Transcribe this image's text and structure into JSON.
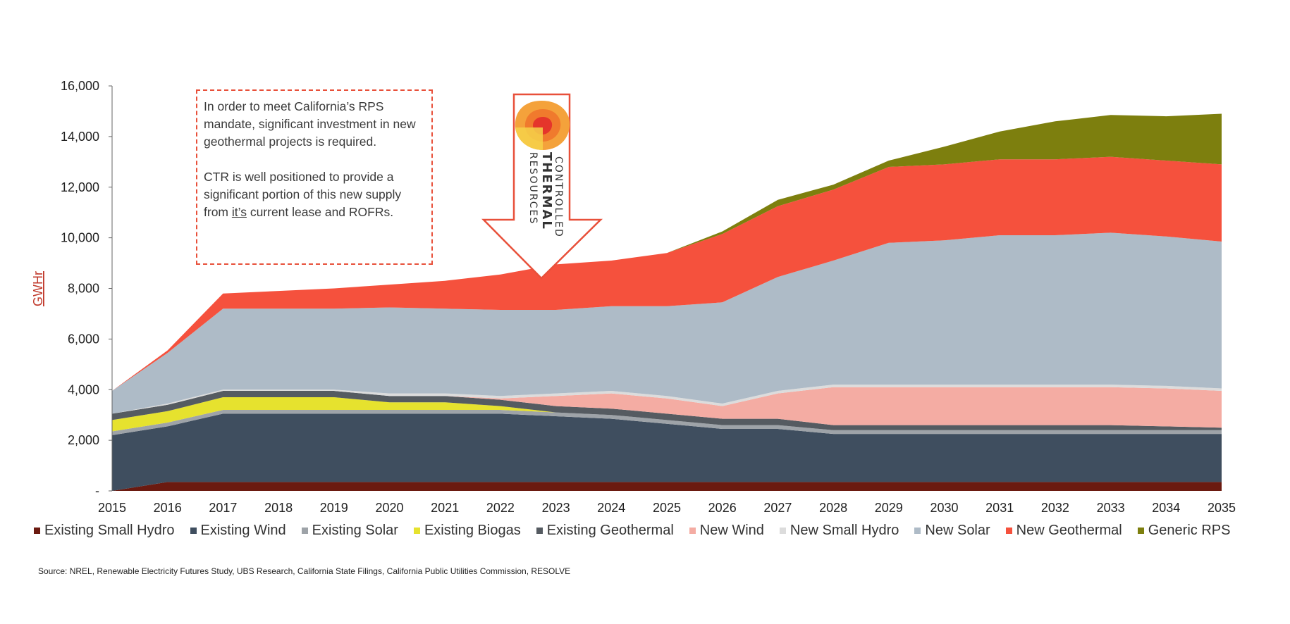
{
  "chart_data": {
    "type": "area",
    "stacked": true,
    "ylabel": "GWHr",
    "ylim": [
      0,
      16000
    ],
    "yticks": [
      "-",
      "2,000",
      "4,000",
      "6,000",
      "8,000",
      "10,000",
      "12,000",
      "14,000",
      "16,000"
    ],
    "x": [
      "2015",
      "2016",
      "2017",
      "2018",
      "2019",
      "2020",
      "2021",
      "2022",
      "2023",
      "2024",
      "2025",
      "2026",
      "2027",
      "2028",
      "2029",
      "2030",
      "2031",
      "2032",
      "2033",
      "2034",
      "2035"
    ],
    "series": [
      {
        "name": "Existing Small Hydro",
        "color": "#6b1a10",
        "values": [
          0,
          350,
          350,
          350,
          350,
          350,
          350,
          350,
          350,
          350,
          350,
          350,
          350,
          350,
          350,
          350,
          350,
          350,
          350,
          350,
          350
        ]
      },
      {
        "name": "Existing Wind",
        "color": "#3f4e5f",
        "values": [
          2200,
          2200,
          2700,
          2700,
          2700,
          2700,
          2700,
          2700,
          2600,
          2500,
          2300,
          2100,
          2100,
          1900,
          1900,
          1900,
          1900,
          1900,
          1900,
          1900,
          1900
        ]
      },
      {
        "name": "Existing Solar",
        "color": "#9ea3a8",
        "values": [
          150,
          150,
          150,
          150,
          150,
          150,
          150,
          150,
          150,
          150,
          150,
          150,
          150,
          150,
          150,
          150,
          150,
          150,
          150,
          150,
          150
        ]
      },
      {
        "name": "Existing Biogas",
        "color": "#e6e22e",
        "values": [
          450,
          450,
          500,
          500,
          500,
          300,
          300,
          150,
          0,
          0,
          0,
          0,
          0,
          0,
          0,
          0,
          0,
          0,
          0,
          0,
          0
        ]
      },
      {
        "name": "Existing Geothermal",
        "color": "#555b61",
        "values": [
          250,
          250,
          250,
          250,
          250,
          250,
          250,
          250,
          250,
          250,
          250,
          250,
          250,
          200,
          200,
          200,
          200,
          200,
          200,
          150,
          100
        ]
      },
      {
        "name": "New Wind",
        "color": "#f4aca3",
        "values": [
          0,
          0,
          0,
          0,
          0,
          0,
          0,
          50,
          400,
          600,
          600,
          500,
          1000,
          1500,
          1500,
          1500,
          1500,
          1500,
          1500,
          1500,
          1450
        ]
      },
      {
        "name": "New Small Hydro",
        "color": "#dcdcdc",
        "values": [
          0,
          50,
          50,
          50,
          50,
          100,
          100,
          100,
          100,
          100,
          100,
          100,
          100,
          100,
          100,
          100,
          100,
          100,
          100,
          100,
          100
        ]
      },
      {
        "name": "New Solar",
        "color": "#aebbc7",
        "values": [
          900,
          2000,
          3200,
          3200,
          3200,
          3400,
          3350,
          3400,
          3300,
          3350,
          3550,
          4000,
          4500,
          4900,
          5600,
          5700,
          5900,
          5900,
          6000,
          5900,
          5800
        ]
      },
      {
        "name": "New Geothermal",
        "color": "#f5513d",
        "values": [
          0,
          100,
          600,
          700,
          800,
          900,
          1100,
          1400,
          1800,
          1800,
          2100,
          2700,
          2800,
          2800,
          3000,
          3000,
          3000,
          3000,
          3000,
          3000,
          3050
        ]
      },
      {
        "name": "Generic RPS",
        "color": "#7d7f0e",
        "values": [
          0,
          0,
          0,
          0,
          0,
          0,
          0,
          0,
          0,
          0,
          0,
          100,
          250,
          200,
          250,
          700,
          1100,
          1500,
          1650,
          1750,
          2000
        ]
      }
    ],
    "legend": "bottom"
  },
  "callout": {
    "paragraph1": "In order to meet California’s RPS mandate, significant investment in new geothermal projects is required.",
    "paragraph2_before": "CTR is well positioned to provide a significant portion of this new supply from ",
    "paragraph2_underlined": "it’s",
    "paragraph2_after": " current lease and ROFRs."
  },
  "logo": {
    "line1": "CONTROLLED",
    "line2": "THERMAL",
    "line3": "RESOURCES"
  },
  "source": "Source:  NREL, Renewable Electricity Futures Study, UBS Research, California State Filings, California Public Utilities Commission, RESOLVE"
}
